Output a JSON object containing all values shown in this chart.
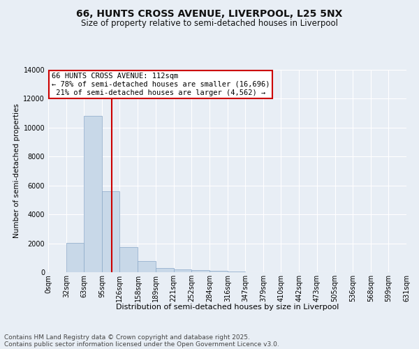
{
  "title1": "66, HUNTS CROSS AVENUE, LIVERPOOL, L25 5NX",
  "title2": "Size of property relative to semi-detached houses in Liverpool",
  "xlabel": "Distribution of semi-detached houses by size in Liverpool",
  "ylabel": "Number of semi-detached properties",
  "bin_labels": [
    "0sqm",
    "32sqm",
    "63sqm",
    "95sqm",
    "126sqm",
    "158sqm",
    "189sqm",
    "221sqm",
    "252sqm",
    "284sqm",
    "316sqm",
    "347sqm",
    "379sqm",
    "410sqm",
    "442sqm",
    "473sqm",
    "505sqm",
    "536sqm",
    "568sqm",
    "599sqm",
    "631sqm"
  ],
  "bin_edges": [
    0,
    32,
    63,
    95,
    126,
    158,
    189,
    221,
    252,
    284,
    316,
    347,
    379,
    410,
    442,
    473,
    505,
    536,
    568,
    599,
    631
  ],
  "bar_heights": [
    0,
    2050,
    10800,
    5600,
    1750,
    750,
    300,
    200,
    150,
    100,
    50,
    20,
    5,
    2,
    1,
    0,
    0,
    0,
    0,
    0
  ],
  "bar_color": "#c8d8e8",
  "bar_edge_color": "#8aa8c8",
  "property_sqm": 112,
  "property_line_color": "#cc0000",
  "annotation_line1": "66 HUNTS CROSS AVENUE: 112sqm",
  "annotation_line2": "← 78% of semi-detached houses are smaller (16,696)",
  "annotation_line3": " 21% of semi-detached houses are larger (4,562) →",
  "annotation_box_edge_color": "#cc0000",
  "footer1": "Contains HM Land Registry data © Crown copyright and database right 2025.",
  "footer2": "Contains public sector information licensed under the Open Government Licence v3.0.",
  "bg_color": "#e8eef5",
  "ylim": [
    0,
    14000
  ],
  "yticks": [
    0,
    2000,
    4000,
    6000,
    8000,
    10000,
    12000,
    14000
  ],
  "grid_color": "#ffffff",
  "title1_fontsize": 10,
  "title2_fontsize": 8.5,
  "xlabel_fontsize": 8,
  "ylabel_fontsize": 7.5,
  "tick_fontsize": 7,
  "annot_fontsize": 7.5,
  "footer_fontsize": 6.5
}
